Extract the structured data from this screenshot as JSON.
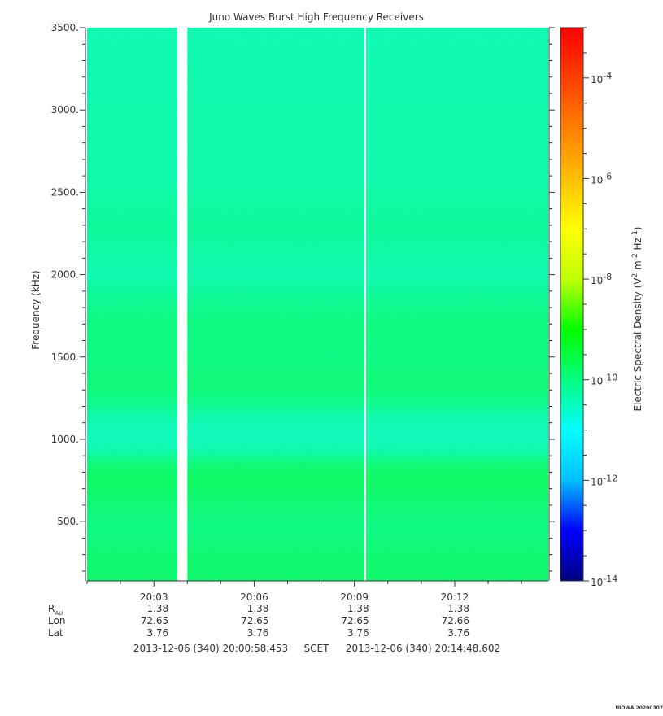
{
  "chart_data": {
    "type": "heatmap",
    "title": "Juno Waves Burst High Frequency Receivers",
    "ylabel": "Frequency (kHz)",
    "ylim": [
      140,
      3500
    ],
    "yticks": [
      {
        "value": 500,
        "label": "500."
      },
      {
        "value": 1000,
        "label": "1000."
      },
      {
        "value": 1500,
        "label": "1500."
      },
      {
        "value": 2000,
        "label": "2000."
      },
      {
        "value": 2500,
        "label": "2500."
      },
      {
        "value": 3000,
        "label": "3000."
      },
      {
        "value": 3500,
        "label": "3500."
      }
    ],
    "xlim_minutes": [
      0.0,
      13.8
    ],
    "xticks": [
      {
        "minute": 2.0,
        "label": "20:03"
      },
      {
        "minute": 5.0,
        "label": "20:06"
      },
      {
        "minute": 8.0,
        "label": "20:09"
      },
      {
        "minute": 11.0,
        "label": "20:12"
      }
    ],
    "data_gaps_minutes": [
      [
        2.7,
        3.0
      ],
      [
        8.3,
        8.35
      ]
    ],
    "intensity_profile": [
      {
        "freq": 140,
        "log10_density": -9.8
      },
      {
        "freq": 300,
        "log10_density": -9.85
      },
      {
        "freq": 450,
        "log10_density": -10.0
      },
      {
        "freq": 600,
        "log10_density": -9.9
      },
      {
        "freq": 750,
        "log10_density": -9.7
      },
      {
        "freq": 850,
        "log10_density": -9.9
      },
      {
        "freq": 950,
        "log10_density": -10.4
      },
      {
        "freq": 1050,
        "log10_density": -10.5
      },
      {
        "freq": 1150,
        "log10_density": -10.3
      },
      {
        "freq": 1250,
        "log10_density": -10.0
      },
      {
        "freq": 1350,
        "log10_density": -9.9
      },
      {
        "freq": 1500,
        "log10_density": -10.0
      },
      {
        "freq": 1700,
        "log10_density": -9.95
      },
      {
        "freq": 1900,
        "log10_density": -10.2
      },
      {
        "freq": 2000,
        "log10_density": -10.4
      },
      {
        "freq": 2100,
        "log10_density": -10.3
      },
      {
        "freq": 2300,
        "log10_density": -10.2
      },
      {
        "freq": 2600,
        "log10_density": -10.35
      },
      {
        "freq": 3000,
        "log10_density": -10.35
      },
      {
        "freq": 3500,
        "log10_density": -10.4
      }
    ],
    "colorbar": {
      "label": "Electric Spectral Density (V² m⁻² Hz⁻¹)",
      "label_base": "Electric Spectral Density (V",
      "label_sup1": "2",
      "label_mid": " m",
      "label_sup2": "-2",
      "label_mid2": " Hz",
      "label_sup3": "-1",
      "label_end": ")",
      "log_range": [
        -14,
        -3
      ],
      "ticks": [
        {
          "exp": -4,
          "base": "10",
          "sup": "-4"
        },
        {
          "exp": -6,
          "base": "10",
          "sup": "-6"
        },
        {
          "exp": -8,
          "base": "10",
          "sup": "-8"
        },
        {
          "exp": -10,
          "base": "10",
          "sup": "-10"
        },
        {
          "exp": -12,
          "base": "10",
          "sup": "-12"
        },
        {
          "exp": -14,
          "base": "10",
          "sup": "-14"
        }
      ],
      "colors": [
        "#000080",
        "#0000ff",
        "#00bfff",
        "#00ffff",
        "#00ff7f",
        "#00ff00",
        "#bfff00",
        "#ffff00",
        "#ffbf00",
        "#ff7f00",
        "#ff3f00",
        "#ff0000"
      ]
    },
    "ephemeris": {
      "row_labels": [
        {
          "text": "R",
          "sub": "AU"
        },
        {
          "text": "Lon",
          "sub": ""
        },
        {
          "text": "Lat",
          "sub": ""
        }
      ],
      "columns": [
        {
          "minute": 2.0,
          "values": [
            "1.38",
            "72.65",
            "3.76"
          ]
        },
        {
          "minute": 5.0,
          "values": [
            "1.38",
            "72.65",
            "3.76"
          ]
        },
        {
          "minute": 8.0,
          "values": [
            "1.38",
            "72.65",
            "3.76"
          ]
        },
        {
          "minute": 11.0,
          "values": [
            "1.38",
            "72.66",
            "3.76"
          ]
        }
      ]
    },
    "time_range": {
      "start": "2013-12-06 (340) 20:00:58.453",
      "scet": "SCET",
      "end": "2013-12-06 (340) 20:14:48.602"
    },
    "footer": "UIOWA 20200307"
  }
}
